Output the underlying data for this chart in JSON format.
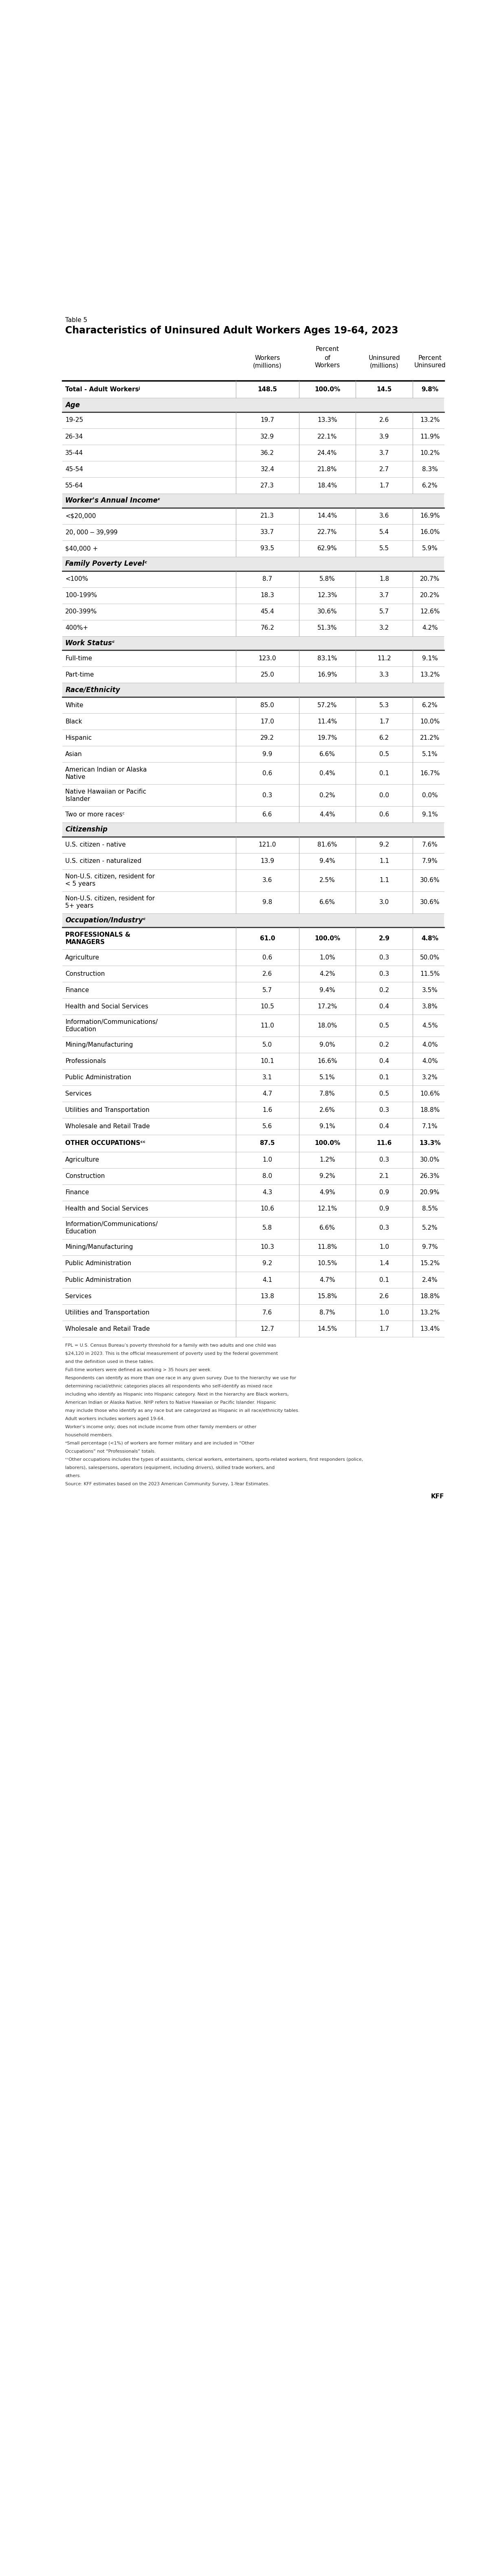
{
  "table_label": "Table 5",
  "title": "Characteristics of Uninsured Adult Workers Ages 19-64, 2023",
  "sections": [
    {
      "section_label": null,
      "rows": [
        {
          "label": "Total - Adult Workersʲ",
          "bold": true,
          "values": [
            "148.5",
            "100.0%",
            "14.5",
            "9.8%"
          ]
        }
      ]
    },
    {
      "section_label": "Age",
      "rows": [
        {
          "label": "19-25",
          "values": [
            "19.7",
            "13.3%",
            "2.6",
            "13.2%"
          ]
        },
        {
          "label": "26-34",
          "values": [
            "32.9",
            "22.1%",
            "3.9",
            "11.9%"
          ]
        },
        {
          "label": "35-44",
          "values": [
            "36.2",
            "24.4%",
            "3.7",
            "10.2%"
          ]
        },
        {
          "label": "45-54",
          "values": [
            "32.4",
            "21.8%",
            "2.7",
            "8.3%"
          ]
        },
        {
          "label": "55-64",
          "values": [
            "27.3",
            "18.4%",
            "1.7",
            "6.2%"
          ]
        }
      ]
    },
    {
      "section_label": "Worker's Annual Incomeᵋ",
      "rows": [
        {
          "label": "<$20,000",
          "values": [
            "21.3",
            "14.4%",
            "3.6",
            "16.9%"
          ]
        },
        {
          "label": "$20,000 - $39,999",
          "values": [
            "33.7",
            "22.7%",
            "5.4",
            "16.0%"
          ]
        },
        {
          "label": "$40,000 +",
          "values": [
            "93.5",
            "62.9%",
            "5.5",
            "5.9%"
          ]
        }
      ]
    },
    {
      "section_label": "Family Poverty Levelᶜ",
      "rows": [
        {
          "label": "<100%",
          "values": [
            "8.7",
            "5.8%",
            "1.8",
            "20.7%"
          ]
        },
        {
          "label": "100-199%",
          "values": [
            "18.3",
            "12.3%",
            "3.7",
            "20.2%"
          ]
        },
        {
          "label": "200-399%",
          "values": [
            "45.4",
            "30.6%",
            "5.7",
            "12.6%"
          ]
        },
        {
          "label": "400%+",
          "values": [
            "76.2",
            "51.3%",
            "3.2",
            "4.2%"
          ]
        }
      ]
    },
    {
      "section_label": "Work Statusᶜ",
      "rows": [
        {
          "label": "Full-time",
          "values": [
            "123.0",
            "83.1%",
            "11.2",
            "9.1%"
          ]
        },
        {
          "label": "Part-time",
          "values": [
            "25.0",
            "16.9%",
            "3.3",
            "13.2%"
          ]
        }
      ]
    },
    {
      "section_label": "Race/Ethnicity",
      "rows": [
        {
          "label": "White",
          "values": [
            "85.0",
            "57.2%",
            "5.3",
            "6.2%"
          ]
        },
        {
          "label": "Black",
          "values": [
            "17.0",
            "11.4%",
            "1.7",
            "10.0%"
          ]
        },
        {
          "label": "Hispanic",
          "values": [
            "29.2",
            "19.7%",
            "6.2",
            "21.2%"
          ]
        },
        {
          "label": "Asian",
          "values": [
            "9.9",
            "6.6%",
            "0.5",
            "5.1%"
          ]
        },
        {
          "label": "American Indian or Alaska\nNative",
          "values": [
            "0.6",
            "0.4%",
            "0.1",
            "16.7%"
          ],
          "multiline": true
        },
        {
          "label": "Native Hawaiian or Pacific\nIslander",
          "values": [
            "0.3",
            "0.2%",
            "0.0",
            "0.0%"
          ],
          "multiline": true
        },
        {
          "label": "Two or more racesᶜ",
          "values": [
            "6.6",
            "4.4%",
            "0.6",
            "9.1%"
          ]
        }
      ]
    },
    {
      "section_label": "Citizenship",
      "rows": [
        {
          "label": "U.S. citizen - native",
          "values": [
            "121.0",
            "81.6%",
            "9.2",
            "7.6%"
          ]
        },
        {
          "label": "U.S. citizen - naturalized",
          "values": [
            "13.9",
            "9.4%",
            "1.1",
            "7.9%"
          ]
        },
        {
          "label": "Non-U.S. citizen, resident for\n< 5 years",
          "values": [
            "3.6",
            "2.5%",
            "1.1",
            "30.6%"
          ],
          "multiline": true
        },
        {
          "label": "Non-U.S. citizen, resident for\n5+ years",
          "values": [
            "9.8",
            "6.6%",
            "3.0",
            "30.6%"
          ],
          "multiline": true
        }
      ]
    },
    {
      "section_label": "Occupation/Industryᶜ",
      "rows": [
        {
          "label": "PROFESSIONALS &\nMANAGERS",
          "bold": true,
          "values": [
            "61.0",
            "100.0%",
            "2.9",
            "4.8%"
          ],
          "multiline": true
        },
        {
          "label": "Agriculture",
          "values": [
            "0.6",
            "1.0%",
            "0.3",
            "50.0%"
          ]
        },
        {
          "label": "Construction",
          "values": [
            "2.6",
            "4.2%",
            "0.3",
            "11.5%"
          ]
        },
        {
          "label": "Finance",
          "values": [
            "5.7",
            "9.4%",
            "0.2",
            "3.5%"
          ]
        },
        {
          "label": "Health and Social Services",
          "values": [
            "10.5",
            "17.2%",
            "0.4",
            "3.8%"
          ]
        },
        {
          "label": "Information/Communications/\nEducation",
          "values": [
            "11.0",
            "18.0%",
            "0.5",
            "4.5%"
          ],
          "multiline": true
        },
        {
          "label": "Mining/Manufacturing",
          "values": [
            "5.0",
            "9.0%",
            "0.2",
            "4.0%"
          ]
        },
        {
          "label": "Professionals",
          "values": [
            "10.1",
            "16.6%",
            "0.4",
            "4.0%"
          ]
        },
        {
          "label": "Public Administration",
          "values": [
            "3.1",
            "5.1%",
            "0.1",
            "3.2%"
          ]
        },
        {
          "label": "Services",
          "values": [
            "4.7",
            "7.8%",
            "0.5",
            "10.6%"
          ]
        },
        {
          "label": "Utilities and Transportation",
          "values": [
            "1.6",
            "2.6%",
            "0.3",
            "18.8%"
          ]
        },
        {
          "label": "Wholesale and Retail Trade",
          "values": [
            "5.6",
            "9.1%",
            "0.4",
            "7.1%"
          ]
        }
      ]
    },
    {
      "section_label": null,
      "rows": [
        {
          "label": "OTHER OCCUPATIONSᶜᶜ",
          "bold": true,
          "values": [
            "87.5",
            "100.0%",
            "11.6",
            "13.3%"
          ]
        },
        {
          "label": "Agriculture",
          "values": [
            "1.0",
            "1.2%",
            "0.3",
            "30.0%"
          ]
        },
        {
          "label": "Construction",
          "values": [
            "8.0",
            "9.2%",
            "2.1",
            "26.3%"
          ]
        },
        {
          "label": "Finance",
          "values": [
            "4.3",
            "4.9%",
            "0.9",
            "20.9%"
          ]
        },
        {
          "label": "Health and Social Services",
          "values": [
            "10.6",
            "12.1%",
            "0.9",
            "8.5%"
          ]
        },
        {
          "label": "Information/Communications/\nEducation",
          "values": [
            "5.8",
            "6.6%",
            "0.3",
            "5.2%"
          ],
          "multiline": true
        },
        {
          "label": "Mining/Manufacturing",
          "values": [
            "10.3",
            "11.8%",
            "1.0",
            "9.7%"
          ]
        },
        {
          "label": "Public Administration",
          "values": [
            "9.2",
            "10.5%",
            "1.4",
            "15.2%"
          ]
        },
        {
          "label": "Public Administration",
          "values": [
            "4.1",
            "4.7%",
            "0.1",
            "2.4%"
          ]
        },
        {
          "label": "Services",
          "values": [
            "13.8",
            "15.8%",
            "2.6",
            "18.8%"
          ]
        },
        {
          "label": "Utilities and Transportation",
          "values": [
            "7.6",
            "8.7%",
            "1.0",
            "13.2%"
          ]
        },
        {
          "label": "Wholesale and Retail Trade",
          "values": [
            "12.7",
            "14.5%",
            "1.7",
            "13.4%"
          ]
        }
      ]
    }
  ],
  "footnote_lines": [
    "FPL = U.S. Census Bureau’s poverty threshold for a family with two adults and one child was",
    "$24,120 in 2023. This is the official measurement of poverty used by the federal government",
    "and the definition used in these tables.",
    "Full-time workers were defined as working > 35 hours per week.",
    "Respondents can identify as more than one race in any given survey. Due to the hierarchy we use for",
    "determining racial/ethnic categories places all respondents who self-identify as mixed race",
    "including who identify as Hispanic into Hispanic category. Next in the hierarchy are Black workers,",
    "American Indian or Alaska Native. NHP refers to Native Hawaiian or Pacific Islander. Hispanic",
    "may include those who identify as any race but are categorized as Hispanic in all race/ethnicity tables.",
    "Adult workers includes workers aged 19-64.",
    "Worker’s income only; does not include income from other family members or other",
    "household members.",
    "ᵃSmall percentage (<1%) of workers are former military and are included in “Other",
    "Occupations” not “Professionals” totals.",
    "ᶜᶜOther occupations includes the types of assistants, clerical workers, entertainers, sports-related workers, first responders (police,",
    "laborers), salespersons, operators (equipment, including drivers), skilled trade workers, and",
    "others.",
    "Source: KFF estimates based on the 2023 American Community Survey, 1-Year Estimates."
  ],
  "col_label": "Percent",
  "col2_label": "of",
  "col3_label": "Workers",
  "light_gray": "#e8e8e8",
  "dark_line": "#222222",
  "mid_line": "#888888",
  "light_line": "#cccccc"
}
